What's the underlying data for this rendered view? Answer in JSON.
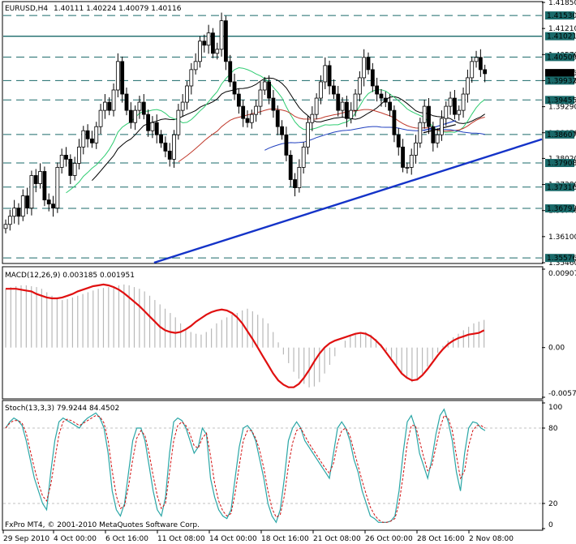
{
  "header": {
    "symbol": "EURUSD,H4",
    "ohlc": "1.40111 1.40224 1.40079 1.40116"
  },
  "copyright": "FxPro MT4, © 2001-2010 MetaQuotes Software Corp.",
  "chart_data": {
    "type": "candlestick",
    "price_axis": {
      "ticks": [
        "1.41850",
        "1.41210",
        "1.40570",
        "1.39930",
        "1.39290",
        "1.38650",
        "1.38020",
        "1.37380",
        "1.36740",
        "1.36100",
        "1.35460"
      ],
      "ylim": [
        1.3546,
        1.4185
      ]
    },
    "horizontal_levels": [
      {
        "label": "1.41530",
        "value": 1.4153
      },
      {
        "label": "1.41021",
        "value": 1.41021
      },
      {
        "label": "1.40509",
        "value": 1.40509
      },
      {
        "label": "1.39932",
        "value": 1.39932
      },
      {
        "label": "1.39455",
        "value": 1.39455
      },
      {
        "label": "1.38607",
        "value": 1.38607
      },
      {
        "label": "1.37908",
        "value": 1.37908
      },
      {
        "label": "1.37316",
        "value": 1.37316
      },
      {
        "label": "1.36793",
        "value": 1.36793
      },
      {
        "label": "1.35576",
        "value": 1.35576
      }
    ],
    "current_price_label": "1.40116",
    "close_series": [
      1.364,
      1.366,
      1.368,
      1.366,
      1.371,
      1.368,
      1.376,
      1.374,
      1.377,
      1.37,
      1.369,
      1.368,
      1.378,
      1.381,
      1.38,
      1.376,
      1.379,
      1.383,
      1.387,
      1.385,
      1.384,
      1.388,
      1.392,
      1.394,
      1.392,
      1.397,
      1.404,
      1.396,
      1.392,
      1.389,
      1.392,
      1.394,
      1.391,
      1.387,
      1.389,
      1.386,
      1.384,
      1.382,
      1.38,
      1.386,
      1.392,
      1.394,
      1.398,
      1.402,
      1.404,
      1.409,
      1.408,
      1.411,
      1.406,
      1.407,
      1.414,
      1.404,
      1.399,
      1.396,
      1.393,
      1.39,
      1.389,
      1.391,
      1.393,
      1.397,
      1.399,
      1.395,
      1.392,
      1.388,
      1.386,
      1.381,
      1.375,
      1.373,
      1.378,
      1.383,
      1.389,
      1.391,
      1.395,
      1.399,
      1.403,
      1.398,
      1.396,
      1.392,
      1.394,
      1.39,
      1.392,
      1.396,
      1.4,
      1.405,
      1.402,
      1.398,
      1.396,
      1.395,
      1.394,
      1.392,
      1.386,
      1.383,
      1.378,
      1.378,
      1.381,
      1.384,
      1.389,
      1.393,
      1.388,
      1.384,
      1.386,
      1.39,
      1.393,
      1.395,
      1.391,
      1.392,
      1.396,
      1.4,
      1.404,
      1.405,
      1.402,
      1.401
    ],
    "moving_averages": [
      {
        "color": "#000000"
      },
      {
        "color": "#2ecc71"
      },
      {
        "color": "#c0392b"
      },
      {
        "color": "#1f3fbf"
      }
    ],
    "trendlines": [
      {
        "color": "#1433c8",
        "from": [
          0.28,
          1.3546
        ],
        "to": [
          1.0,
          1.3849
        ]
      },
      {
        "color": "#000000",
        "from": [
          0.78,
          1.3865
        ],
        "to": [
          0.84,
          1.3885
        ]
      },
      {
        "color": "#1f3fbf",
        "from": [
          0.78,
          1.387
        ],
        "to": [
          0.84,
          1.3895
        ]
      }
    ],
    "x_axis": {
      "ticks": [
        "29 Sep 2010",
        "4 Oct 00:00",
        "6 Oct 16:00",
        "11 Oct 08:00",
        "14 Oct 00:00",
        "18 Oct 16:00",
        "21 Oct 08:00",
        "26 Oct 00:00",
        "28 Oct 16:00",
        "2 Nov 08:00"
      ]
    },
    "macd": {
      "title": "MACD(12,26,9) 0.003185 0.001951",
      "ticks": [
        "0.009074",
        "0.00",
        "-0.00575"
      ],
      "ylim": [
        -0.00575,
        0.009074
      ],
      "histogram": [
        0.0068,
        0.007,
        0.0071,
        0.0072,
        0.0072,
        0.0071,
        0.007,
        0.0068,
        0.0064,
        0.006,
        0.0058,
        0.0055,
        0.0056,
        0.0058,
        0.006,
        0.0062,
        0.0064,
        0.0066,
        0.0068,
        0.0069,
        0.007,
        0.0071,
        0.0072,
        0.0073,
        0.0072,
        0.007,
        0.0068,
        0.0065,
        0.006,
        0.0055,
        0.005,
        0.0045,
        0.004,
        0.0035,
        0.0028,
        0.0022,
        0.0018,
        0.0016,
        0.0015,
        0.0018,
        0.0022,
        0.0028,
        0.0032,
        0.0035,
        0.0038,
        0.004,
        0.0043,
        0.0045,
        0.0042,
        0.0038,
        0.0034,
        0.0028,
        0.0018,
        0.0006,
        -0.0008,
        -0.0018,
        -0.0028,
        -0.0036,
        -0.0042,
        -0.0046,
        -0.0045,
        -0.004,
        -0.003,
        -0.002,
        -0.001,
        0.0,
        0.0008,
        0.0014,
        0.0016,
        0.0017,
        0.0018,
        0.0015,
        0.001,
        0.0004,
        -0.0004,
        -0.0012,
        -0.002,
        -0.003,
        -0.0036,
        -0.004,
        -0.0038,
        -0.003,
        -0.0022,
        -0.0014,
        -0.0006,
        0.0002,
        0.0008,
        0.0012,
        0.0016,
        0.002,
        0.0024,
        0.0028,
        0.003,
        0.0032
      ],
      "signal": [
        0.0068,
        0.0068,
        0.0068,
        0.0067,
        0.0066,
        0.0065,
        0.0062,
        0.006,
        0.0058,
        0.0057,
        0.0057,
        0.0058,
        0.006,
        0.0062,
        0.0065,
        0.0067,
        0.0069,
        0.0071,
        0.0072,
        0.0073,
        0.0072,
        0.007,
        0.0067,
        0.0063,
        0.0058,
        0.0053,
        0.0048,
        0.0042,
        0.0036,
        0.003,
        0.0024,
        0.002,
        0.0018,
        0.0017,
        0.0018,
        0.0021,
        0.0025,
        0.003,
        0.0034,
        0.0038,
        0.0041,
        0.0043,
        0.0044,
        0.0043,
        0.004,
        0.0035,
        0.0028,
        0.0019,
        0.001,
        0.0,
        -0.001,
        -0.002,
        -0.003,
        -0.0038,
        -0.0043,
        -0.0046,
        -0.0046,
        -0.0042,
        -0.0035,
        -0.0026,
        -0.0016,
        -0.0007,
        0.0,
        0.0005,
        0.0008,
        0.001,
        0.0012,
        0.0014,
        0.0016,
        0.0017,
        0.0016,
        0.0013,
        0.0008,
        0.0002,
        -0.0006,
        -0.0014,
        -0.0022,
        -0.003,
        -0.0035,
        -0.0038,
        -0.0037,
        -0.0032,
        -0.0025,
        -0.0017,
        -0.0009,
        -0.0002,
        0.0004,
        0.0008,
        0.0011,
        0.0013,
        0.0015,
        0.0016,
        0.0017,
        0.002
      ]
    },
    "stochastic": {
      "title": "Stoch(13,3,3) 79.9244 84.4502",
      "ticks": [
        "100",
        "80",
        "20",
        "0"
      ],
      "ylim": [
        0,
        100
      ],
      "main": [
        80,
        85,
        88,
        86,
        82,
        70,
        55,
        40,
        30,
        20,
        15,
        45,
        70,
        85,
        88,
        86,
        84,
        82,
        80,
        85,
        88,
        90,
        92,
        88,
        80,
        60,
        30,
        15,
        10,
        20,
        45,
        70,
        80,
        80,
        70,
        50,
        30,
        15,
        10,
        25,
        60,
        85,
        88,
        86,
        80,
        70,
        60,
        65,
        80,
        75,
        40,
        25,
        15,
        10,
        8,
        15,
        40,
        65,
        80,
        82,
        78,
        70,
        55,
        40,
        20,
        10,
        5,
        15,
        40,
        70,
        80,
        85,
        80,
        70,
        65,
        60,
        55,
        50,
        45,
        40,
        60,
        80,
        85,
        80,
        70,
        55,
        45,
        30,
        20,
        10,
        8,
        5,
        5,
        5,
        6,
        10,
        30,
        60,
        85,
        90,
        80,
        60,
        50,
        40,
        55,
        75,
        90,
        95,
        85,
        70,
        45,
        30,
        60,
        80,
        85,
        84,
        80,
        78
      ],
      "signal": [
        80,
        84,
        86,
        86,
        84,
        76,
        62,
        48,
        36,
        26,
        22,
        35,
        55,
        75,
        85,
        87,
        86,
        84,
        82,
        84,
        86,
        88,
        90,
        89,
        84,
        70,
        46,
        26,
        16,
        18,
        34,
        55,
        72,
        78,
        74,
        60,
        42,
        26,
        16,
        20,
        45,
        70,
        82,
        85,
        82,
        75,
        66,
        64,
        72,
        76,
        58,
        36,
        22,
        14,
        10,
        12,
        28,
        50,
        70,
        78,
        78,
        72,
        62,
        48,
        30,
        16,
        9,
        11,
        26,
        50,
        68,
        78,
        80,
        74,
        68,
        63,
        58,
        53,
        48,
        44,
        52,
        68,
        78,
        80,
        74,
        62,
        50,
        38,
        27,
        17,
        11,
        7,
        5,
        5,
        6,
        8,
        20,
        42,
        68,
        82,
        82,
        70,
        57,
        46,
        50,
        65,
        80,
        90,
        88,
        78,
        58,
        40,
        46,
        66,
        78,
        82,
        82,
        80
      ]
    }
  }
}
